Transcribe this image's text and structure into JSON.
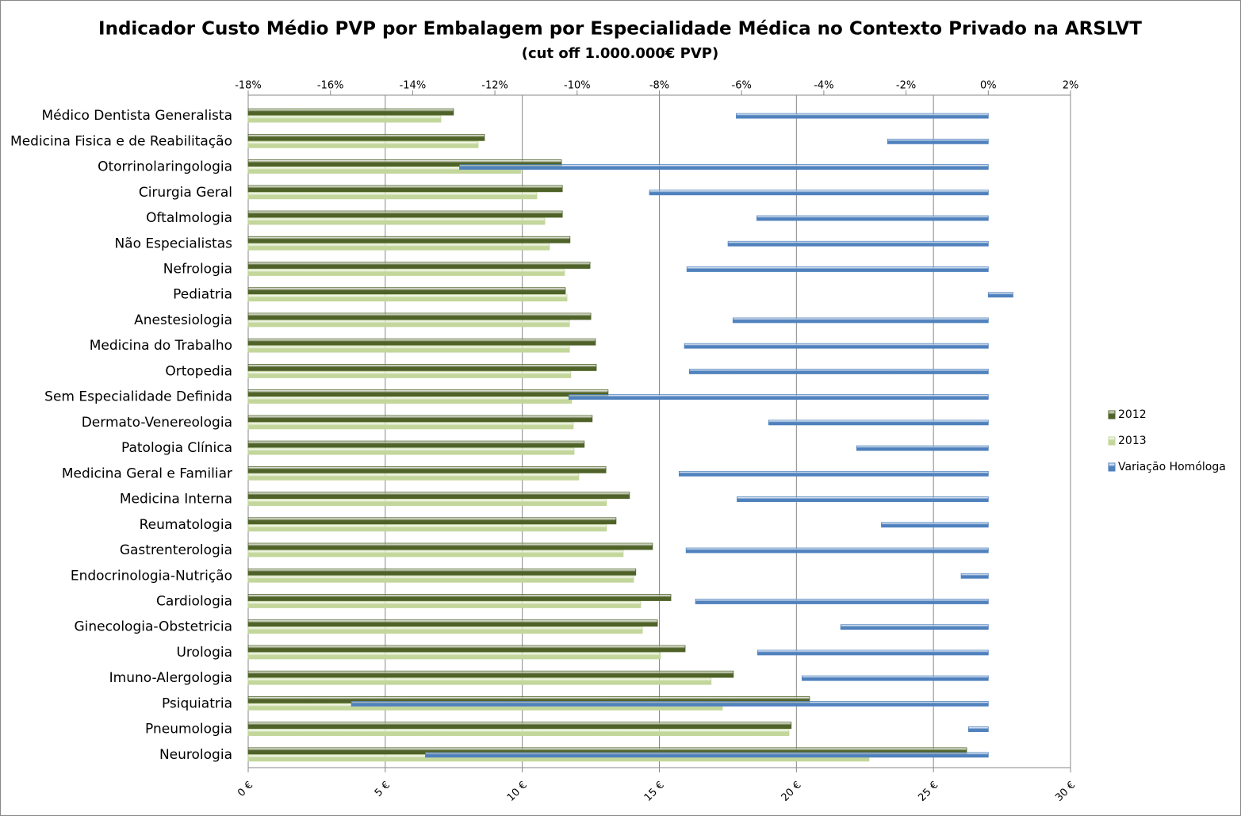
{
  "chart_data": {
    "type": "hbar",
    "title": "Indicador Custo Médio PVP por Embalagem por Especialidade Médica no Contexto Privado na ARSLVT",
    "subtitle": "(cut off 1.000.000€ PVP)",
    "categories": [
      "Médico Dentista Generalista",
      "Medicina Fisica e de Reabilitação",
      "Otorrinolaringologia",
      "Cirurgia Geral",
      "Oftalmologia",
      "Não Especialistas",
      "Nefrologia",
      "Pediatria",
      "Anestesiologia",
      "Medicina do Trabalho",
      "Ortopedia",
      "Sem Especialidade Definida",
      "Dermato-Venereologia",
      "Patologia Clínica",
      "Medicina Geral e Familiar",
      "Medicina Interna",
      "Reumatologia",
      "Gastrenterologia",
      "Endocrinologia-Nutrição",
      "Cardiologia",
      "Ginecologia-Obstetricia",
      "Urologia",
      "Imuno-Alergologia",
      "Psiquiatria",
      "Pneumologia",
      "Neurologia"
    ],
    "series": [
      {
        "name": "2012",
        "color": "#4f6228",
        "values": [
          7.49,
          8.62,
          11.43,
          11.46,
          11.46,
          11.74,
          12.47,
          11.57,
          12.5,
          12.67,
          12.7,
          13.13,
          12.55,
          12.26,
          13.05,
          13.91,
          13.42,
          14.75,
          14.14,
          15.42,
          14.93,
          15.94,
          17.7,
          20.48,
          19.81,
          26.21
        ]
      },
      {
        "name": "2013",
        "color": "#c3d69b",
        "values": [
          7.03,
          8.39,
          9.95,
          10.53,
          10.82,
          10.99,
          11.54,
          11.63,
          11.72,
          11.72,
          11.77,
          11.8,
          11.86,
          11.89,
          12.06,
          13.07,
          13.07,
          13.68,
          14.06,
          14.32,
          14.38,
          15.04,
          16.89,
          17.3,
          19.73,
          22.65
        ]
      },
      {
        "name": "Variação Homóloga",
        "color": "#4f81bd",
        "axis": "x2",
        "values": [
          -6.13,
          -2.45,
          -12.86,
          -8.24,
          -5.63,
          -6.33,
          -7.33,
          0.6,
          -6.21,
          -7.39,
          -7.27,
          -10.2,
          -5.34,
          -3.2,
          -7.52,
          -6.11,
          -2.6,
          -7.35,
          -0.66,
          -7.12,
          -3.59,
          -5.61,
          -4.53,
          -15.49,
          -0.48,
          -13.69
        ]
      }
    ],
    "xlim": [
      0,
      30
    ],
    "xticks": [
      {
        "value": 0,
        "label": "0 €"
      },
      {
        "value": 5,
        "label": "5 €"
      },
      {
        "value": 10,
        "label": "10 €"
      },
      {
        "value": 15,
        "label": "15 €"
      },
      {
        "value": 20,
        "label": "20 €"
      },
      {
        "value": 25,
        "label": "25 €"
      },
      {
        "value": 30,
        "label": "30 €"
      }
    ],
    "x2lim": [
      -18,
      2
    ],
    "x2ticks": [
      {
        "value": -18,
        "label": "-18%"
      },
      {
        "value": -16,
        "label": "-16%"
      },
      {
        "value": -14,
        "label": "-14%"
      },
      {
        "value": -12,
        "label": "-12%"
      },
      {
        "value": -10,
        "label": "-10%"
      },
      {
        "value": -8,
        "label": "-8%"
      },
      {
        "value": -6,
        "label": "-6%"
      },
      {
        "value": -4,
        "label": "-4%"
      },
      {
        "value": -2,
        "label": "-2%"
      },
      {
        "value": 0,
        "label": "0%"
      },
      {
        "value": 2,
        "label": "2%"
      }
    ],
    "grid": true,
    "legend": "right"
  }
}
